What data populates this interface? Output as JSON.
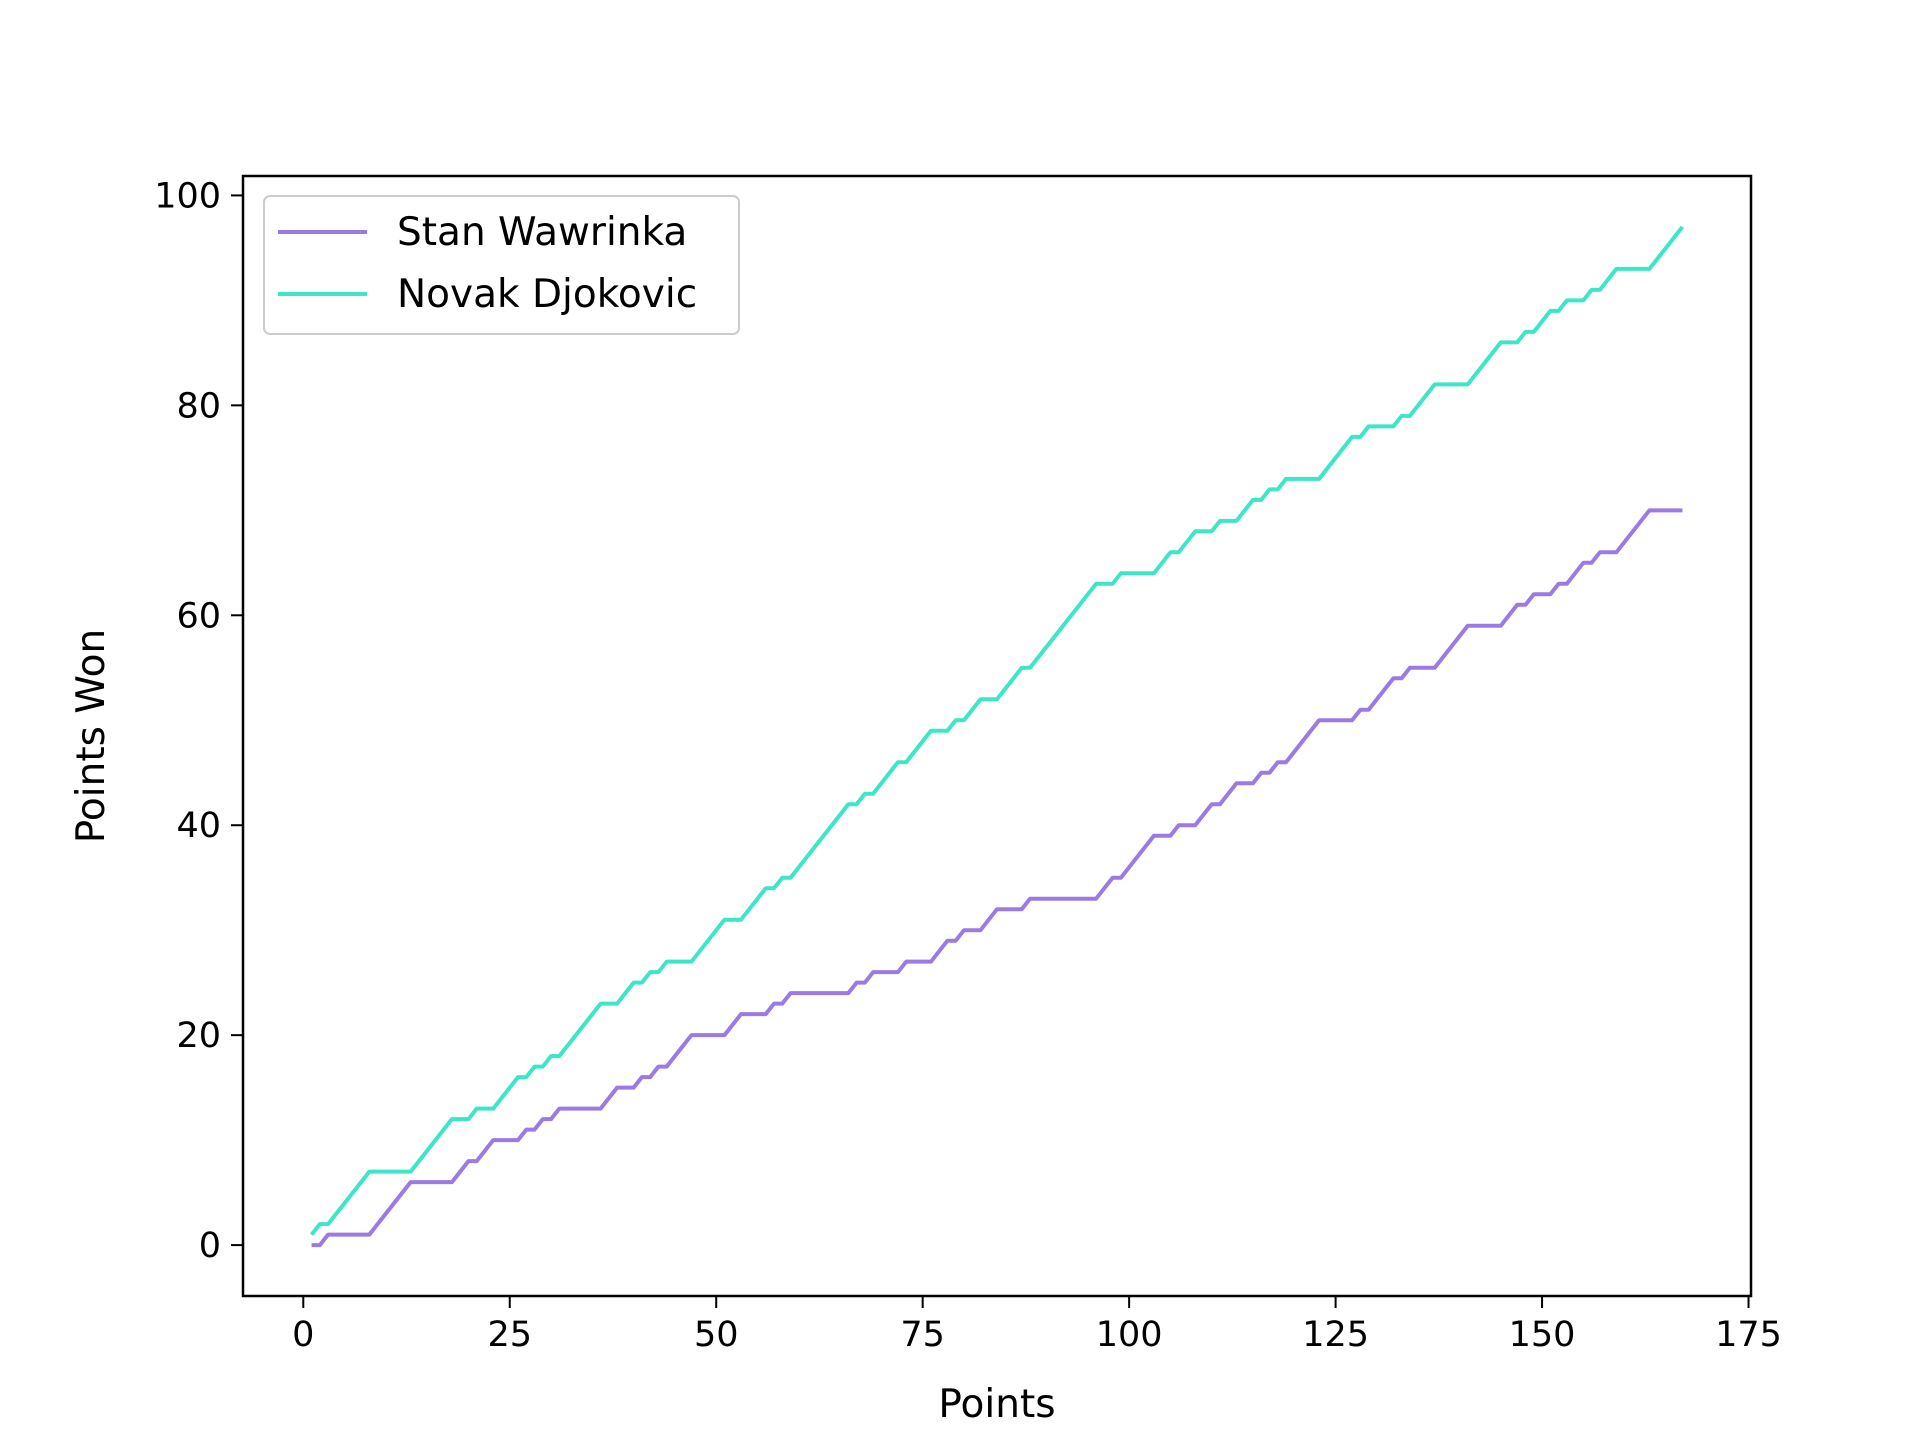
{
  "chart_data": {
    "type": "line",
    "title": "",
    "xlabel": "Points",
    "ylabel": "Points Won",
    "xlim": [
      -7.3,
      175.3
    ],
    "ylim": [
      -4.85,
      101.85
    ],
    "xticks": [
      0,
      25,
      50,
      75,
      100,
      125,
      150,
      175
    ],
    "yticks": [
      0,
      20,
      40,
      60,
      80,
      100
    ],
    "grid": false,
    "legend_position": "top-left",
    "series": [
      {
        "name": "Stan Wawrinka",
        "color": "#9b7be3",
        "points": [
          [
            1,
            0
          ],
          [
            2,
            0
          ],
          [
            3,
            1
          ],
          [
            4,
            1
          ],
          [
            8,
            1
          ],
          [
            13,
            6
          ],
          [
            18,
            6
          ],
          [
            20,
            8
          ],
          [
            21,
            8
          ],
          [
            23,
            10
          ],
          [
            26,
            10
          ],
          [
            27,
            11
          ],
          [
            28,
            11
          ],
          [
            29,
            12
          ],
          [
            30,
            12
          ],
          [
            31,
            13
          ],
          [
            36,
            13
          ],
          [
            38,
            15
          ],
          [
            40,
            15
          ],
          [
            41,
            16
          ],
          [
            42,
            16
          ],
          [
            43,
            17
          ],
          [
            44,
            17
          ],
          [
            47,
            20
          ],
          [
            51,
            20
          ],
          [
            53,
            22
          ],
          [
            56,
            22
          ],
          [
            57,
            23
          ],
          [
            58,
            23
          ],
          [
            59,
            24
          ],
          [
            66,
            24
          ],
          [
            67,
            25
          ],
          [
            68,
            25
          ],
          [
            69,
            26
          ],
          [
            72,
            26
          ],
          [
            73,
            27
          ],
          [
            76,
            27
          ],
          [
            78,
            29
          ],
          [
            79,
            29
          ],
          [
            80,
            30
          ],
          [
            82,
            30
          ],
          [
            84,
            32
          ],
          [
            87,
            32
          ],
          [
            88,
            33
          ],
          [
            96,
            33
          ],
          [
            98,
            35
          ],
          [
            99,
            35
          ],
          [
            103,
            39
          ],
          [
            105,
            39
          ],
          [
            106,
            40
          ],
          [
            108,
            40
          ],
          [
            110,
            42
          ],
          [
            111,
            42
          ],
          [
            113,
            44
          ],
          [
            115,
            44
          ],
          [
            116,
            45
          ],
          [
            117,
            45
          ],
          [
            118,
            46
          ],
          [
            119,
            46
          ],
          [
            123,
            50
          ],
          [
            127,
            50
          ],
          [
            128,
            51
          ],
          [
            129,
            51
          ],
          [
            132,
            54
          ],
          [
            133,
            54
          ],
          [
            134,
            55
          ],
          [
            137,
            55
          ],
          [
            141,
            59
          ],
          [
            145,
            59
          ],
          [
            147,
            61
          ],
          [
            148,
            61
          ],
          [
            149,
            62
          ],
          [
            151,
            62
          ],
          [
            152,
            63
          ],
          [
            153,
            63
          ],
          [
            155,
            65
          ],
          [
            156,
            65
          ],
          [
            157,
            66
          ],
          [
            159,
            66
          ],
          [
            163,
            70
          ],
          [
            167,
            70
          ]
        ]
      },
      {
        "name": "Novak Djokovic",
        "color": "#3de6c6",
        "points": [
          [
            1,
            1
          ],
          [
            2,
            2
          ],
          [
            3,
            2
          ],
          [
            8,
            7
          ],
          [
            13,
            7
          ],
          [
            18,
            12
          ],
          [
            20,
            12
          ],
          [
            21,
            13
          ],
          [
            23,
            13
          ],
          [
            26,
            16
          ],
          [
            27,
            16
          ],
          [
            28,
            17
          ],
          [
            29,
            17
          ],
          [
            30,
            18
          ],
          [
            31,
            18
          ],
          [
            36,
            23
          ],
          [
            38,
            23
          ],
          [
            40,
            25
          ],
          [
            41,
            25
          ],
          [
            42,
            26
          ],
          [
            43,
            26
          ],
          [
            44,
            27
          ],
          [
            47,
            27
          ],
          [
            51,
            31
          ],
          [
            53,
            31
          ],
          [
            56,
            34
          ],
          [
            57,
            34
          ],
          [
            58,
            35
          ],
          [
            59,
            35
          ],
          [
            66,
            42
          ],
          [
            67,
            42
          ],
          [
            68,
            43
          ],
          [
            69,
            43
          ],
          [
            72,
            46
          ],
          [
            73,
            46
          ],
          [
            76,
            49
          ],
          [
            78,
            49
          ],
          [
            79,
            50
          ],
          [
            80,
            50
          ],
          [
            82,
            52
          ],
          [
            84,
            52
          ],
          [
            87,
            55
          ],
          [
            88,
            55
          ],
          [
            96,
            63
          ],
          [
            98,
            63
          ],
          [
            99,
            64
          ],
          [
            103,
            64
          ],
          [
            105,
            66
          ],
          [
            106,
            66
          ],
          [
            108,
            68
          ],
          [
            110,
            68
          ],
          [
            111,
            69
          ],
          [
            113,
            69
          ],
          [
            115,
            71
          ],
          [
            116,
            71
          ],
          [
            117,
            72
          ],
          [
            118,
            72
          ],
          [
            119,
            73
          ],
          [
            123,
            73
          ],
          [
            127,
            77
          ],
          [
            128,
            77
          ],
          [
            129,
            78
          ],
          [
            132,
            78
          ],
          [
            133,
            79
          ],
          [
            134,
            79
          ],
          [
            137,
            82
          ],
          [
            141,
            82
          ],
          [
            145,
            86
          ],
          [
            147,
            86
          ],
          [
            148,
            87
          ],
          [
            149,
            87
          ],
          [
            151,
            89
          ],
          [
            152,
            89
          ],
          [
            153,
            90
          ],
          [
            155,
            90
          ],
          [
            156,
            91
          ],
          [
            157,
            91
          ],
          [
            159,
            93
          ],
          [
            163,
            93
          ],
          [
            167,
            97
          ]
        ]
      }
    ]
  }
}
